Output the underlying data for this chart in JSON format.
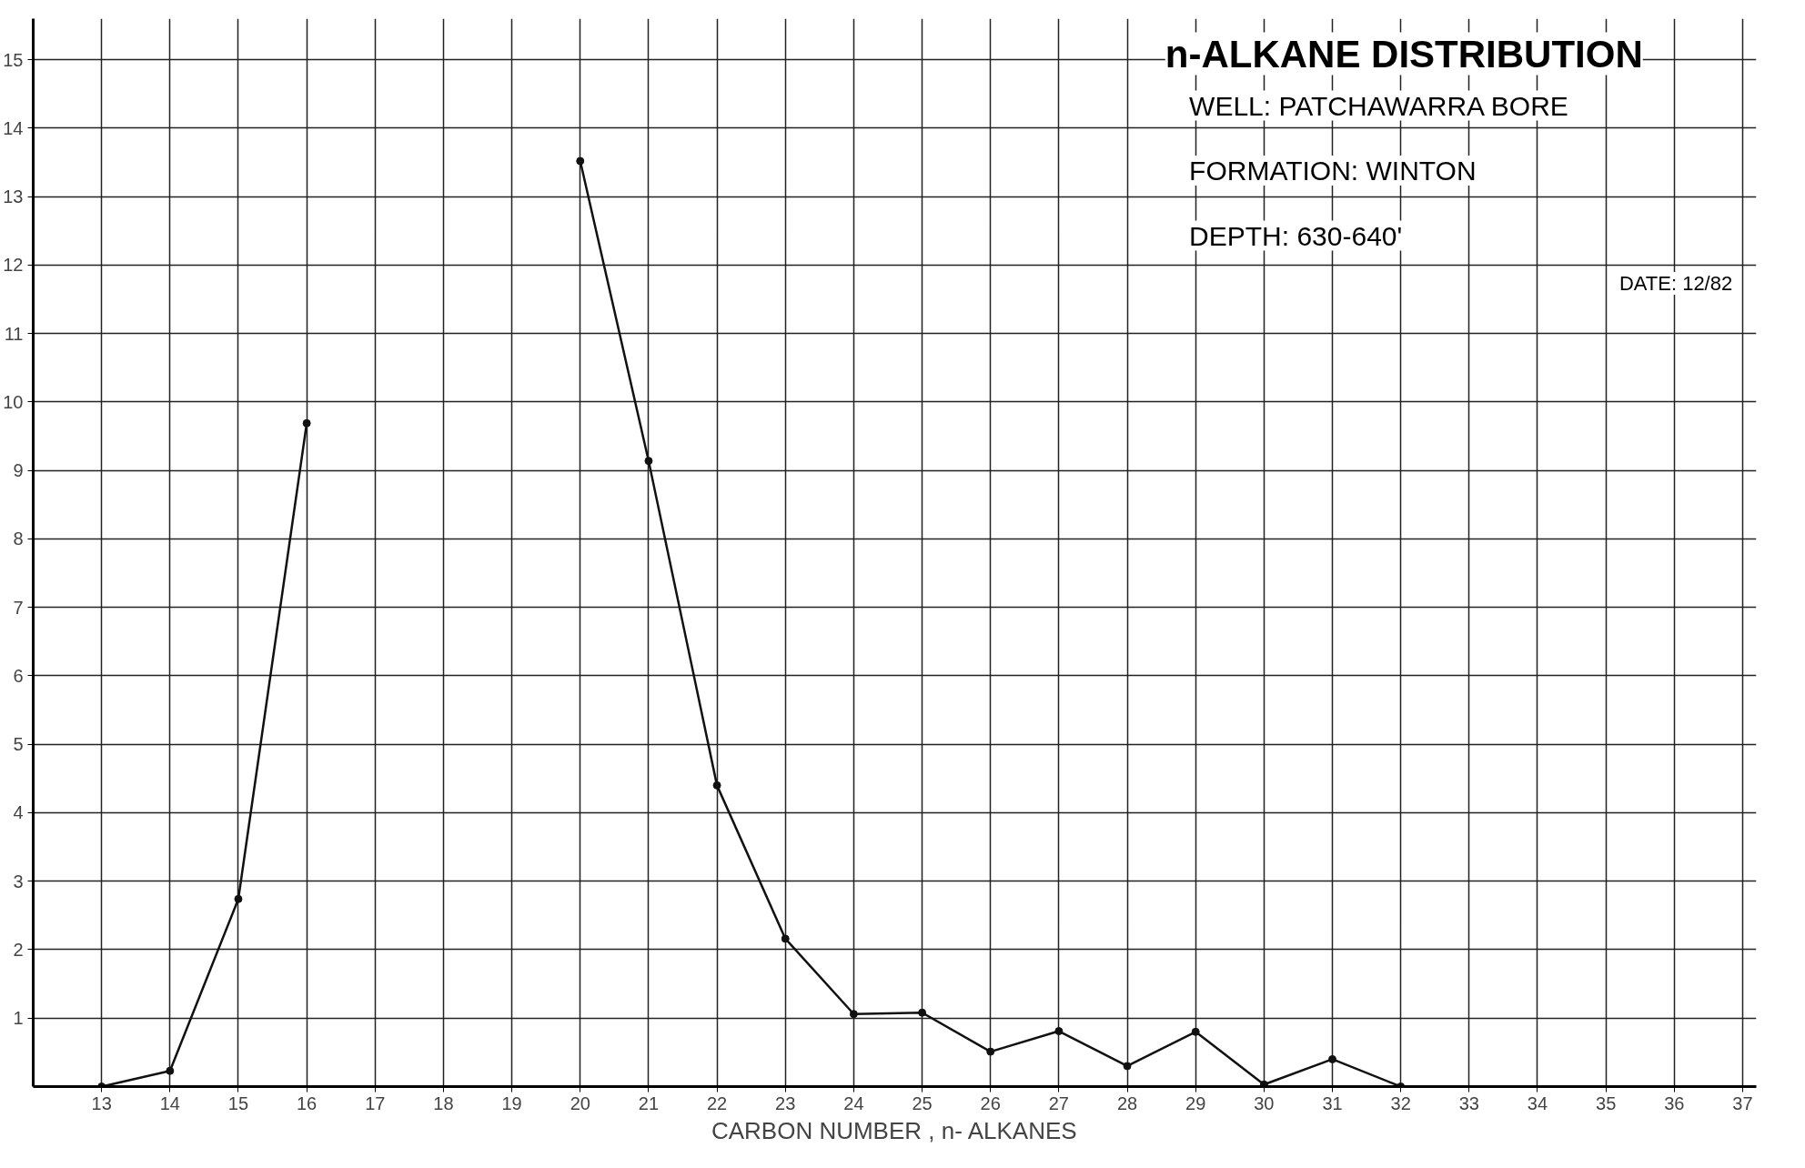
{
  "chart_data": {
    "type": "line",
    "title": "n-ALKANE DISTRIBUTION",
    "xlabel": "CARBON NUMBER , n- ALKANES",
    "x": [
      13,
      14,
      15,
      16,
      17,
      18,
      19,
      20,
      21,
      22,
      23,
      24,
      25,
      26,
      27,
      28,
      29,
      30,
      31,
      32
    ],
    "series": [
      {
        "color": "#111111",
        "values": [
          0,
          0.23,
          2.74,
          9.69,
          null,
          null,
          null,
          13.52,
          9.14,
          4.4,
          2.16,
          1.06,
          1.08,
          0.51,
          0.81,
          0.3,
          0.8,
          0.03,
          0.4,
          0
        ]
      }
    ],
    "xlim": [
      12,
      37.2
    ],
    "ylim": [
      0,
      15.6
    ],
    "xticks": [
      13,
      14,
      15,
      16,
      17,
      18,
      19,
      20,
      21,
      22,
      23,
      24,
      25,
      26,
      27,
      28,
      29,
      30,
      31,
      32,
      33,
      34,
      35,
      36,
      37
    ],
    "yticks": [
      1,
      2,
      3,
      4,
      5,
      6,
      7,
      8,
      9,
      10,
      11,
      12,
      13,
      14,
      15
    ],
    "grid": true,
    "marker": "circle",
    "line_style": "solid",
    "annotations": [
      "WELL: PATCHAWARRA BORE",
      "FORMATION: WINTON",
      "DEPTH: 630-640'",
      "DATE: 12/82"
    ]
  }
}
